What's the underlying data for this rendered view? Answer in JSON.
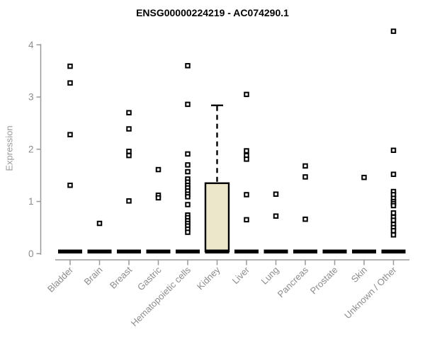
{
  "chart_data": {
    "type": "box",
    "title": "ENSG00000224219 - AC074290.1",
    "ylabel": "Expression",
    "xlabel": "",
    "ylim": [
      0,
      4.4
    ],
    "yticks": [
      0,
      1,
      2,
      3,
      4
    ],
    "grid": false,
    "legend": "none",
    "axis_color": "#999999",
    "label_color": "#8c8c8c",
    "box_fill": "#ece6cb",
    "box_stroke": "#000000",
    "outlier_shape": "open-square",
    "categories": [
      "Bladder",
      "Brain",
      "Breast",
      "Gastric",
      "Hematopoietic cells",
      "Kidney",
      "Liver",
      "Lung",
      "Pancreas",
      "Prostate",
      "Skin",
      "Unknown / Other"
    ],
    "boxes": [
      {
        "category": "Bladder",
        "whisker_low": 0,
        "q1": 0,
        "median": 0,
        "q3": 0,
        "whisker_high": 0,
        "outliers": [
          3.59,
          3.27,
          2.28,
          1.31
        ]
      },
      {
        "category": "Brain",
        "whisker_low": 0,
        "q1": 0,
        "median": 0,
        "q3": 0,
        "whisker_high": 0,
        "outliers": [
          0.58
        ]
      },
      {
        "category": "Breast",
        "whisker_low": 0,
        "q1": 0,
        "median": 0,
        "q3": 0,
        "whisker_high": 0,
        "outliers": [
          2.7,
          2.39,
          1.96,
          1.88,
          1.01
        ]
      },
      {
        "category": "Gastric",
        "whisker_low": 0,
        "q1": 0,
        "median": 0,
        "q3": 0,
        "whisker_high": 0,
        "outliers": [
          1.61,
          1.12,
          1.07
        ]
      },
      {
        "category": "Hematopoietic cells",
        "whisker_low": 0,
        "q1": 0,
        "median": 0,
        "q3": 0,
        "whisker_high": 0,
        "outliers": [
          3.6,
          2.86,
          1.91,
          1.7,
          1.57,
          1.43,
          1.37,
          1.31,
          1.26,
          1.2,
          1.14,
          1.09,
          0.94,
          0.74,
          0.69,
          0.63,
          0.58,
          0.53,
          0.47,
          0.41
        ]
      },
      {
        "category": "Kidney",
        "whisker_low": 0,
        "q1": 0,
        "median": 0,
        "q3": 1.35,
        "whisker_high": 2.84,
        "outliers": []
      },
      {
        "category": "Liver",
        "whisker_low": 0,
        "q1": 0,
        "median": 0,
        "q3": 0,
        "whisker_high": 0,
        "outliers": [
          3.05,
          1.97,
          1.88,
          1.81,
          1.13,
          0.65
        ]
      },
      {
        "category": "Lung",
        "whisker_low": 0,
        "q1": 0,
        "median": 0,
        "q3": 0,
        "whisker_high": 0,
        "outliers": [
          1.14,
          0.72
        ]
      },
      {
        "category": "Pancreas",
        "whisker_low": 0,
        "q1": 0,
        "median": 0,
        "q3": 0,
        "whisker_high": 0,
        "outliers": [
          1.68,
          1.47,
          0.66
        ]
      },
      {
        "category": "Prostate",
        "whisker_low": 0,
        "q1": 0,
        "median": 0,
        "q3": 0,
        "whisker_high": 0,
        "outliers": []
      },
      {
        "category": "Skin",
        "whisker_low": 0,
        "q1": 0,
        "median": 0,
        "q3": 0,
        "whisker_high": 0,
        "outliers": [
          1.46
        ]
      },
      {
        "category": "Unknown / Other",
        "whisker_low": 0,
        "q1": 0,
        "median": 0,
        "q3": 0,
        "whisker_high": 0,
        "outliers": [
          4.26,
          1.98,
          1.52,
          1.19,
          1.13,
          1.06,
          1.0,
          0.96,
          0.92,
          0.78,
          0.7,
          0.64,
          0.56,
          0.5,
          0.44,
          0.36
        ]
      }
    ]
  }
}
